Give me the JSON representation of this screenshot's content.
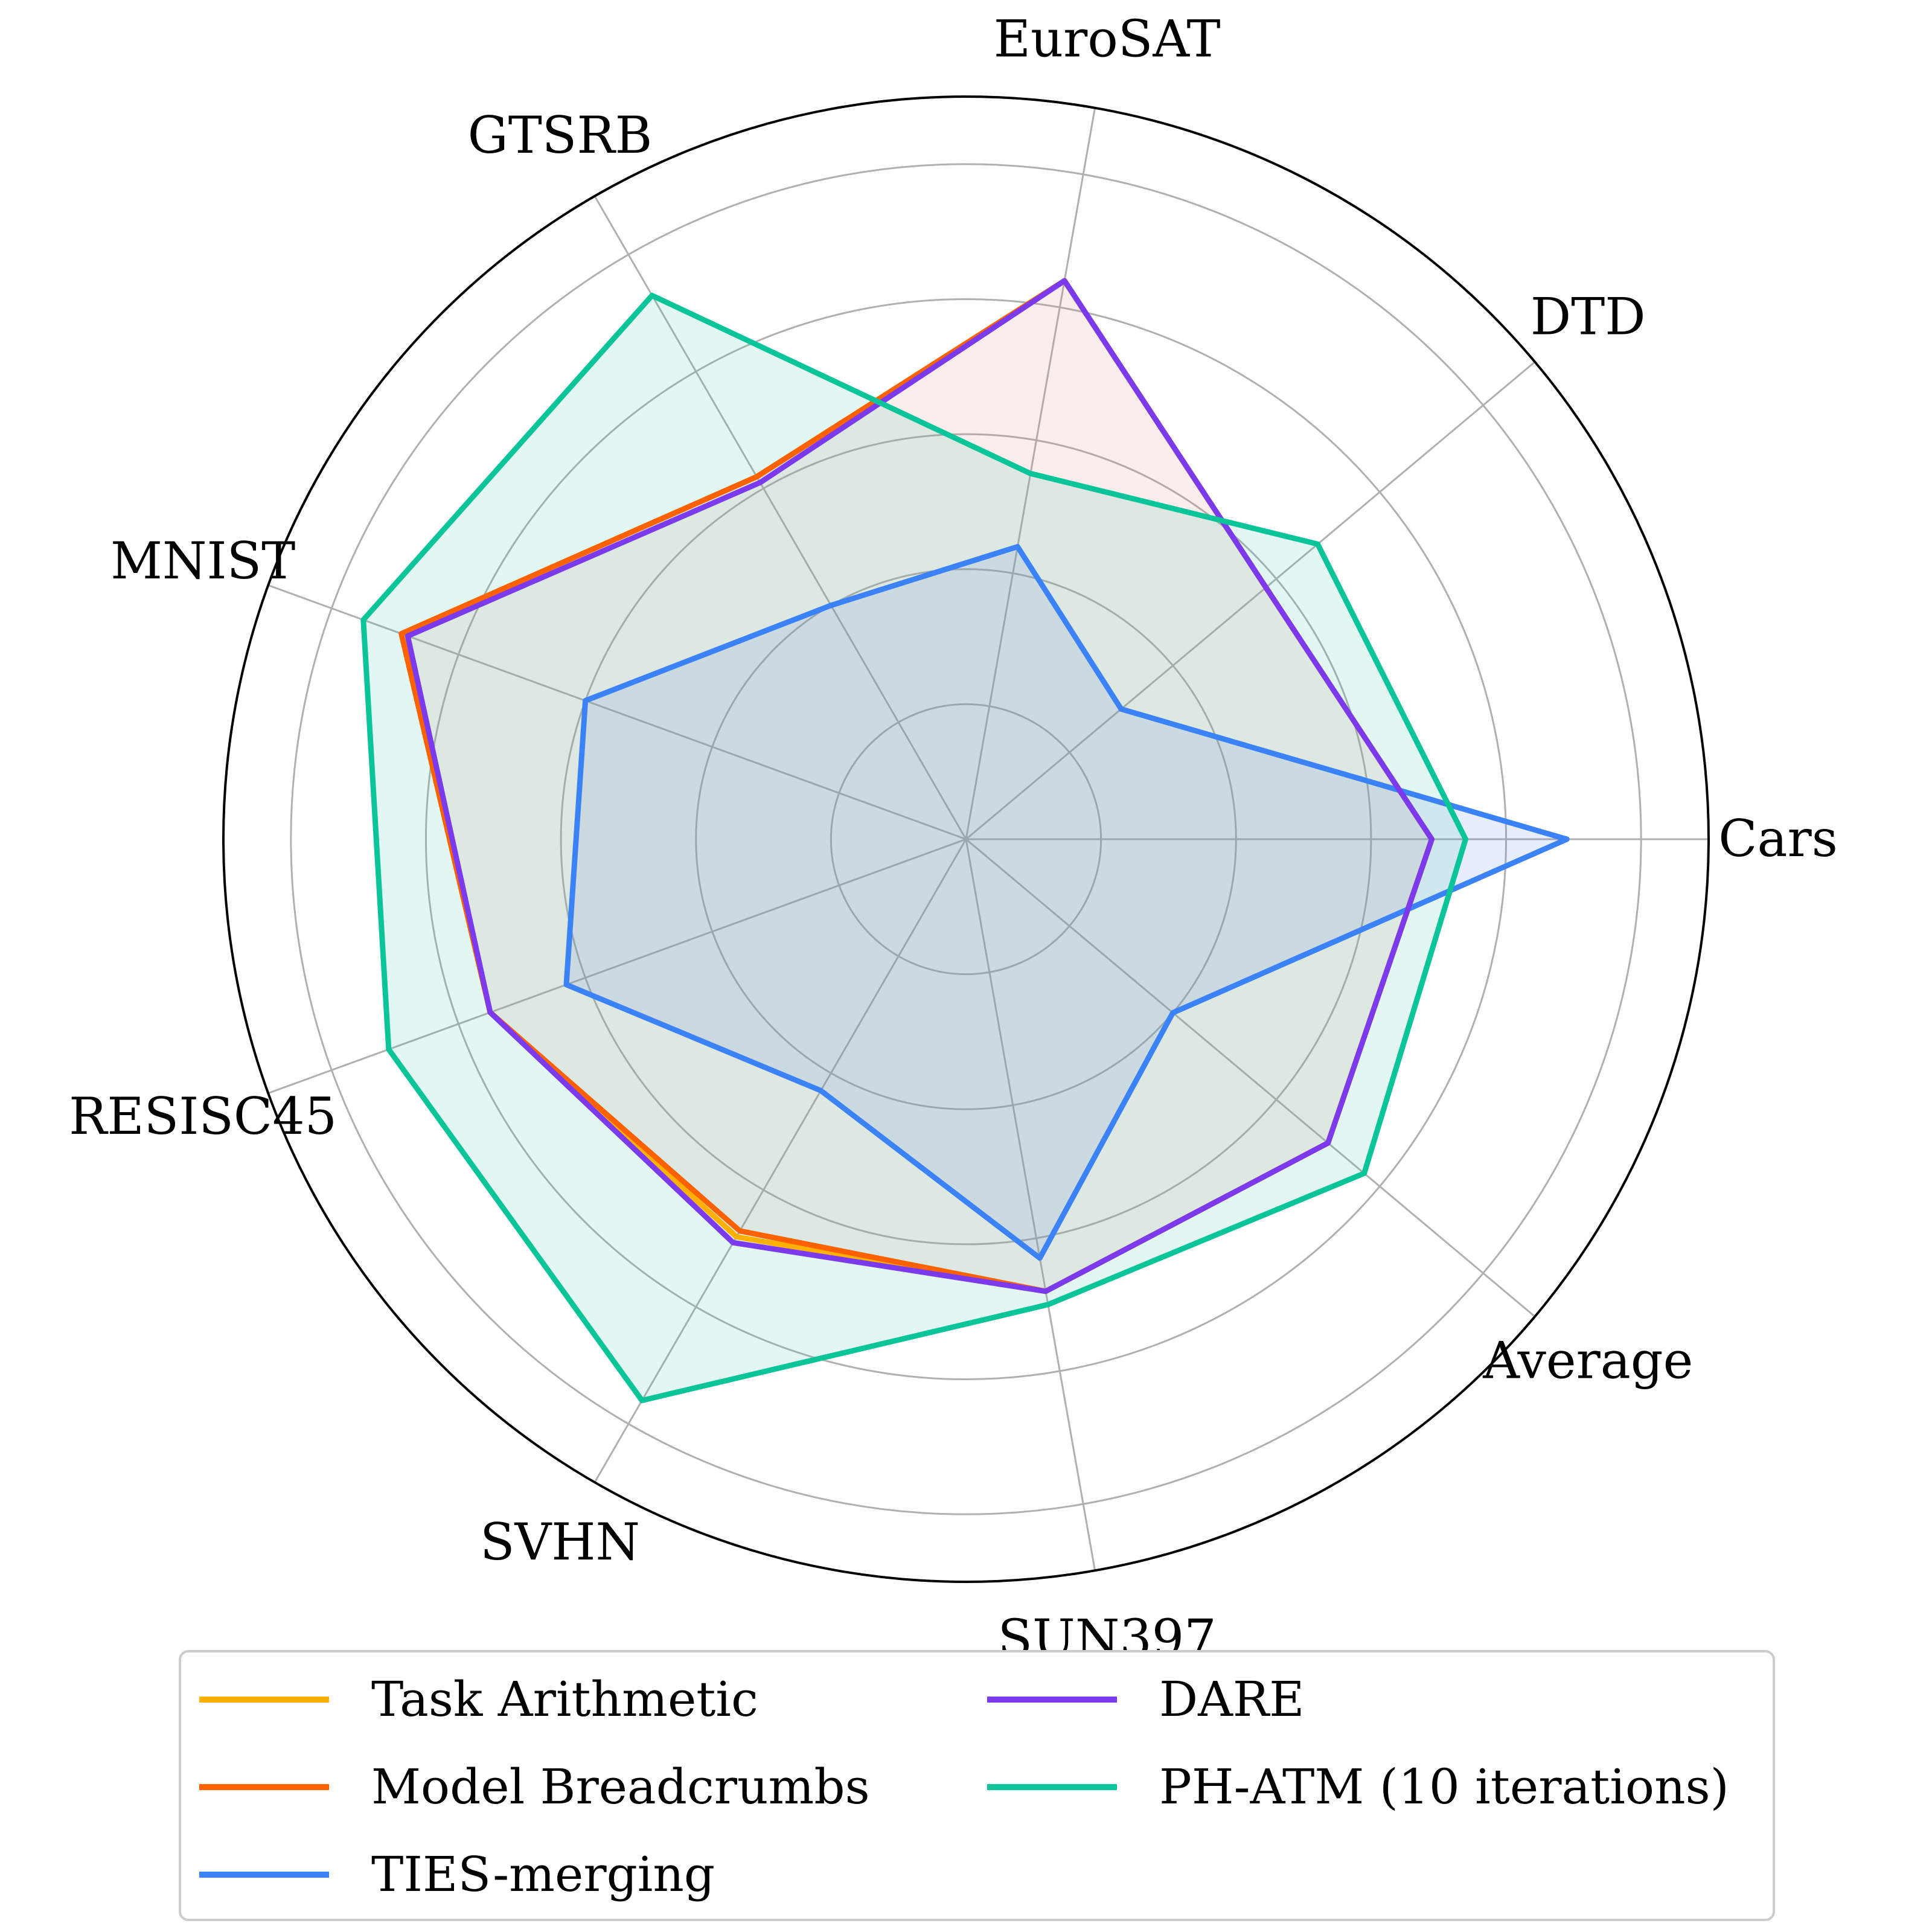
{
  "chart_data": {
    "type": "radar",
    "categories": [
      "Cars",
      "DTD",
      "EuroSAT",
      "GTSRB",
      "MNIST",
      "RESISC45",
      "SVHN",
      "SUN397",
      "Average"
    ],
    "rlim": [
      0,
      1.1
    ],
    "grid_levels": [
      0.2,
      0.4,
      0.6,
      0.8,
      1.0
    ],
    "grid": true,
    "legend_position": "bottom",
    "series": [
      {
        "name": "Task Arithmetic",
        "color": "#FFB000",
        "fill": "none",
        "values": [
          0.69,
          0.58,
          0.84,
          0.62,
          0.89,
          0.75,
          0.68,
          0.68,
          0.7
        ]
      },
      {
        "name": "Model Breadcrumbs",
        "color": "#FE6100",
        "fill": "#d9867e",
        "values": [
          0.69,
          0.58,
          0.84,
          0.62,
          0.89,
          0.75,
          0.67,
          0.68,
          0.7
        ]
      },
      {
        "name": "TIES-merging",
        "color": "#3B82F6",
        "fill": "#5b7fe8",
        "values": [
          0.89,
          0.3,
          0.44,
          0.4,
          0.6,
          0.63,
          0.43,
          0.63,
          0.4
        ]
      },
      {
        "name": "DARE",
        "color": "#7C3AED",
        "fill": "none",
        "values": [
          0.69,
          0.58,
          0.84,
          0.61,
          0.88,
          0.75,
          0.69,
          0.68,
          0.7
        ]
      },
      {
        "name": "PH-ATM (10 iterations)",
        "color": "#0BC49A",
        "fill": "#38c9a3",
        "values": [
          0.74,
          0.68,
          0.55,
          0.93,
          0.95,
          0.91,
          0.96,
          0.7,
          0.77
        ]
      }
    ]
  }
}
